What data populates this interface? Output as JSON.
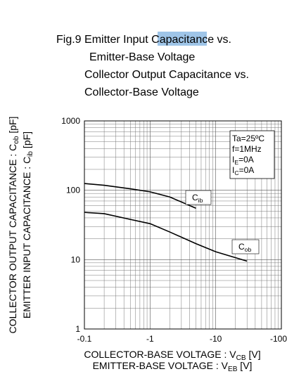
{
  "chart_data": {
    "type": "line",
    "title_lines": [
      "Fig.9 Emitter Input Capacitance vs.",
      "Emitter-Base Voltage",
      "Collector Output Capacitance vs.",
      "Collector-Base Voltage"
    ],
    "x_labels": [
      {
        "main": "COLLECTOR-BASE VOLTAGE : V",
        "sub": "CB",
        "unit": " [V]"
      },
      {
        "main": "EMITTER-BASE VOLTAGE : V",
        "sub": "EB",
        "unit": " [V]"
      }
    ],
    "y_labels": [
      {
        "main": "COLLECTOR OUTPUT CAPACITANCE : C",
        "sub": "ob",
        "unit": " [pF]"
      },
      {
        "main": "EMITTER INPUT CAPACITANCE : C",
        "sub": "ib",
        "unit": " [pF]"
      }
    ],
    "conditions": [
      {
        "main": "Ta=25ºC"
      },
      {
        "main": "f=1MHz"
      },
      {
        "main": "I",
        "sub": "E",
        "unit": "=0A"
      },
      {
        "main": "I",
        "sub": "C",
        "unit": "=0A"
      }
    ],
    "series": [
      {
        "label": {
          "main": "C",
          "sub": "ib"
        },
        "color": "#000000",
        "x": [
          0.1,
          0.2,
          0.5,
          1,
          2,
          5
        ],
        "values": [
          125,
          118,
          105,
          95,
          80,
          55
        ]
      },
      {
        "label": {
          "main": "C",
          "sub": "ob"
        },
        "color": "#000000",
        "x": [
          0.1,
          0.2,
          0.5,
          1,
          2,
          5,
          10,
          30
        ],
        "values": [
          48,
          46,
          38,
          33,
          25,
          17,
          13,
          9.5
        ]
      }
    ],
    "xlim": [
      0.1,
      100
    ],
    "ylim": [
      1,
      1000
    ],
    "log_x": true,
    "log_y": true,
    "grid": true,
    "xticks": [
      {
        "value": 0.1,
        "label": "-0.1"
      },
      {
        "value": 1,
        "label": "-1"
      },
      {
        "value": 10,
        "label": "-10"
      },
      {
        "value": 100,
        "label": "-100"
      }
    ],
    "yticks": [
      1,
      10,
      100,
      1000
    ]
  }
}
